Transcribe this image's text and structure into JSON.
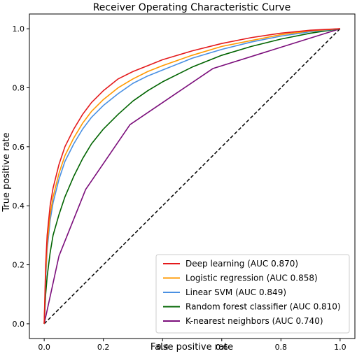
{
  "chart_data": {
    "type": "line",
    "title": "Receiver Operating Characteristic Curve",
    "xlabel": "False positive rate",
    "ylabel": "True positive rate",
    "xlim": [
      0.0,
      1.0
    ],
    "ylim": [
      0.0,
      1.0
    ],
    "xticks": [
      "0.0",
      "0.2",
      "0.4",
      "0.6",
      "0.8",
      "1.0"
    ],
    "yticks": [
      "0.0",
      "0.2",
      "0.4",
      "0.6",
      "0.8",
      "1.0"
    ],
    "grid": false,
    "legend_position": "lower-right",
    "series": [
      {
        "name": "Deep learning (AUC 0.870)",
        "color": "#e41a1c",
        "x": [
          0,
          0.005,
          0.01,
          0.02,
          0.03,
          0.05,
          0.07,
          0.1,
          0.13,
          0.16,
          0.2,
          0.25,
          0.3,
          0.35,
          0.4,
          0.5,
          0.6,
          0.7,
          0.8,
          0.9,
          1.0
        ],
        "y": [
          0,
          0.2,
          0.3,
          0.4,
          0.46,
          0.54,
          0.6,
          0.66,
          0.71,
          0.75,
          0.79,
          0.83,
          0.855,
          0.875,
          0.895,
          0.925,
          0.95,
          0.97,
          0.985,
          0.995,
          1.0
        ]
      },
      {
        "name": "Logistic regression (AUC 0.858)",
        "color": "#ff9900",
        "x": [
          0,
          0.005,
          0.01,
          0.02,
          0.03,
          0.05,
          0.07,
          0.1,
          0.13,
          0.16,
          0.2,
          0.25,
          0.3,
          0.35,
          0.4,
          0.5,
          0.6,
          0.7,
          0.8,
          0.9,
          1.0
        ],
        "y": [
          0,
          0.17,
          0.27,
          0.37,
          0.43,
          0.51,
          0.57,
          0.63,
          0.68,
          0.72,
          0.76,
          0.8,
          0.83,
          0.855,
          0.875,
          0.91,
          0.94,
          0.96,
          0.98,
          0.993,
          1.0
        ]
      },
      {
        "name": "Linear SVM (AUC 0.849)",
        "color": "#4a90e2",
        "x": [
          0,
          0.005,
          0.01,
          0.02,
          0.03,
          0.05,
          0.07,
          0.1,
          0.13,
          0.16,
          0.2,
          0.25,
          0.3,
          0.35,
          0.4,
          0.5,
          0.6,
          0.7,
          0.8,
          0.9,
          1.0
        ],
        "y": [
          0,
          0.15,
          0.25,
          0.35,
          0.41,
          0.49,
          0.55,
          0.61,
          0.66,
          0.7,
          0.74,
          0.78,
          0.815,
          0.84,
          0.86,
          0.9,
          0.93,
          0.955,
          0.975,
          0.99,
          1.0
        ]
      },
      {
        "name": "Random forest classifier (AUC 0.810)",
        "color": "#006400",
        "x": [
          0,
          0.005,
          0.01,
          0.02,
          0.03,
          0.05,
          0.07,
          0.1,
          0.13,
          0.16,
          0.2,
          0.25,
          0.3,
          0.35,
          0.4,
          0.5,
          0.6,
          0.7,
          0.8,
          0.9,
          1.0
        ],
        "y": [
          0,
          0.1,
          0.16,
          0.24,
          0.3,
          0.37,
          0.43,
          0.5,
          0.56,
          0.61,
          0.66,
          0.71,
          0.755,
          0.79,
          0.82,
          0.87,
          0.91,
          0.94,
          0.965,
          0.985,
          1.0
        ]
      },
      {
        "name": "K-nearest neighbors (AUC 0.740)",
        "color": "#7b0e7b",
        "x": [
          0,
          0.05,
          0.14,
          0.29,
          0.57,
          1.0
        ],
        "y": [
          0,
          0.23,
          0.455,
          0.675,
          0.865,
          1.0
        ]
      }
    ],
    "reference_line": {
      "x": [
        0,
        1
      ],
      "y": [
        0,
        1
      ],
      "style": "dashed",
      "color": "#000000"
    }
  }
}
